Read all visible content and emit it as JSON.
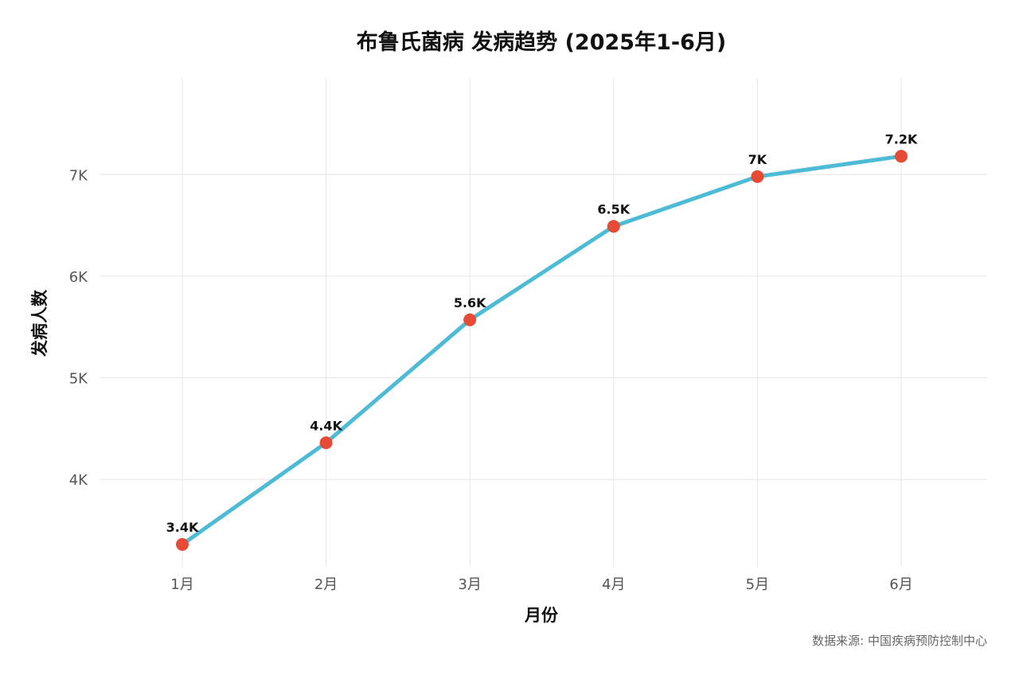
{
  "chart_data": {
    "type": "line",
    "title": "布鲁氏菌病 发病趋势 (2025年1-6月)",
    "xlabel": "月份",
    "ylabel": "发病人数",
    "categories": [
      "1月",
      "2月",
      "3月",
      "4月",
      "5月",
      "6月"
    ],
    "series": [
      {
        "values": [
          3360,
          4360,
          5570,
          6490,
          6980,
          7180
        ],
        "labels": [
          "3.4K",
          "4.4K",
          "5.6K",
          "6.5K",
          "7K",
          "7.2K"
        ]
      }
    ],
    "yticks": [
      4000,
      5000,
      6000,
      7000
    ],
    "ytick_labels": [
      "4K",
      "5K",
      "6K",
      "7K"
    ],
    "ylim": [
      3140,
      7950
    ],
    "grid": true,
    "line_color": "#4DBBD5",
    "marker_color": "#E64B35",
    "caption": "数据来源: 中国疾病预防控制中心"
  }
}
